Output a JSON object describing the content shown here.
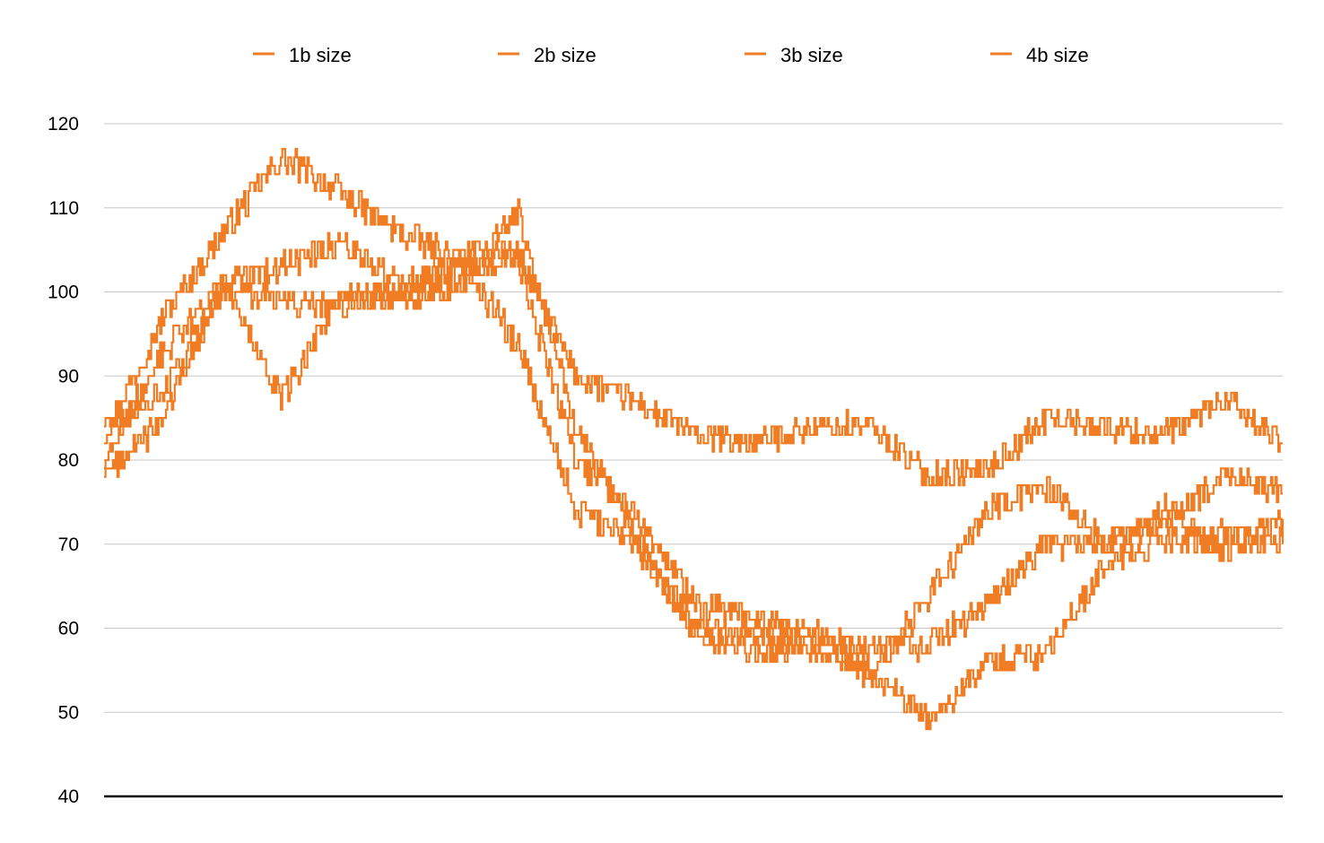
{
  "chart_data": {
    "type": "line",
    "title": "",
    "xlabel": "",
    "ylabel": "",
    "ylim": [
      40,
      120
    ],
    "yticks": [
      40,
      50,
      60,
      70,
      80,
      90,
      100,
      110,
      120
    ],
    "grid": true,
    "legend_position": "top",
    "line_color": "#f07c24",
    "x": [
      0,
      5,
      10,
      15,
      20,
      25,
      30,
      35,
      40,
      45,
      50,
      55,
      60,
      65,
      70,
      75,
      80,
      85,
      90,
      95,
      100
    ],
    "series": [
      {
        "name": "1b size",
        "values": [
          83,
          97,
          107,
          116,
          112,
          107,
          104,
          105,
          90,
          87,
          83,
          82,
          84,
          84,
          78,
          79,
          85,
          84,
          83,
          87,
          82
        ]
      },
      {
        "name": "2b size",
        "values": [
          80,
          93,
          101,
          103,
          106,
          101,
          102,
          104,
          80,
          74,
          63,
          61,
          60,
          55,
          49,
          56,
          57,
          68,
          70,
          71,
          70
        ]
      },
      {
        "name": "3b size",
        "values": [
          78,
          85,
          101,
          87,
          100,
          99,
          100,
          110,
          84,
          71,
          60,
          57,
          58,
          54,
          64,
          74,
          77,
          70,
          74,
          69,
          73
        ]
      },
      {
        "name": "4b size",
        "values": [
          84,
          88,
          100,
          99,
          98,
          100,
          104,
          94,
          74,
          70,
          60,
          59,
          58,
          58,
          58,
          63,
          70,
          70,
          73,
          78,
          76
        ]
      }
    ]
  }
}
